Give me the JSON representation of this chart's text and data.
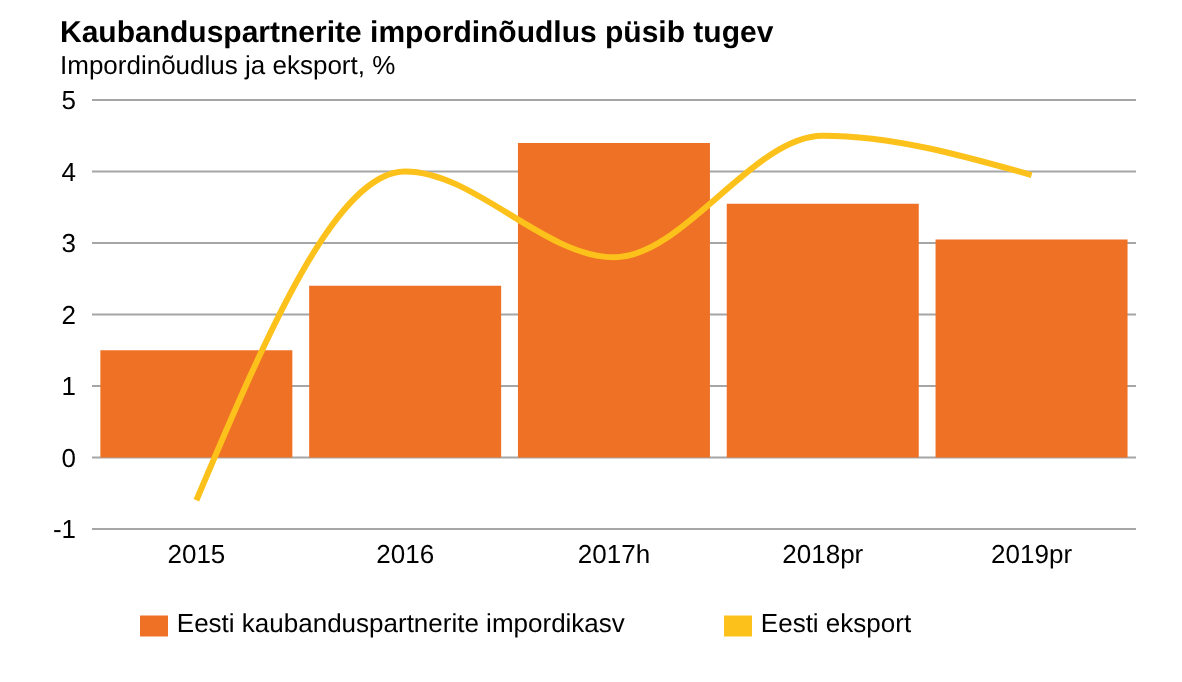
{
  "chart_data": {
    "type": "bar",
    "title": "Kaubanduspartnerite impordinõudlus  püsib tugev",
    "subtitle": "Impordinõudlus ja eksport, %",
    "categories": [
      "2015",
      "2016",
      "2017h",
      "2018pr",
      "2019pr"
    ],
    "series": [
      {
        "name": "Eesti kaubanduspartnerite impordikasv",
        "color": "#ef7125",
        "values": [
          1.5,
          2.4,
          4.4,
          3.55,
          3.05
        ]
      },
      {
        "name": "Eesti eksport",
        "type": "line",
        "color": "#fcc21b",
        "values": [
          -0.6,
          4.0,
          2.8,
          4.5,
          3.95
        ]
      }
    ],
    "ylim": [
      -1,
      5
    ],
    "yticks": [
      -1,
      0,
      1,
      2,
      3,
      4,
      5
    ],
    "grid": "y",
    "legend": "bottom",
    "marker": "none"
  }
}
